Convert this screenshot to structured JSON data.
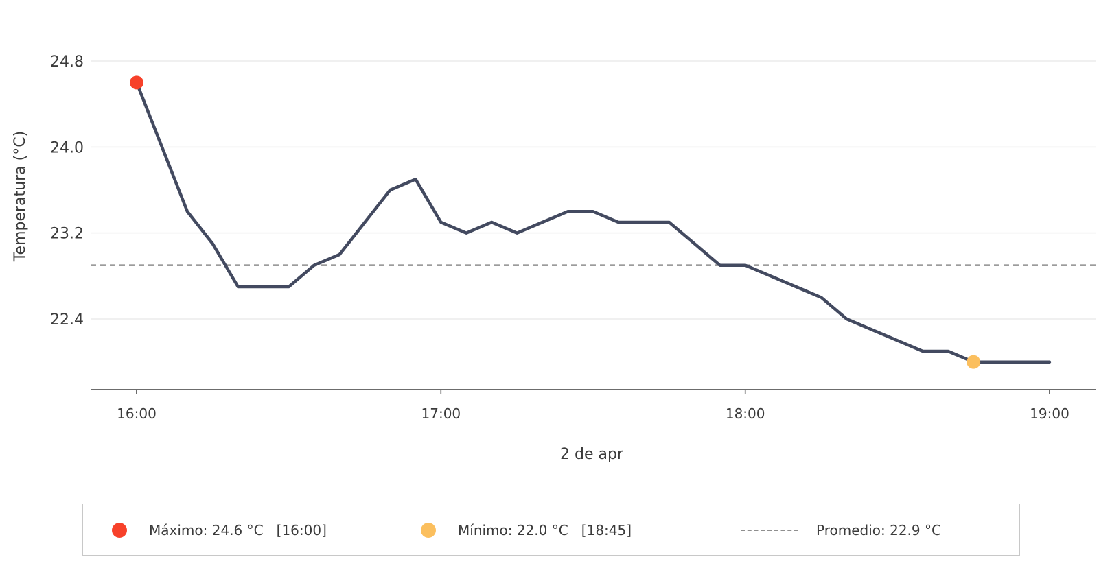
{
  "chart_data": {
    "type": "line",
    "ylabel": "Temperatura (°C)",
    "xlabel": "2 de apr",
    "ylim": [
      21.75,
      25.1
    ],
    "y_ticks": [
      "22.4",
      "23.2",
      "24.0",
      "24.8"
    ],
    "x_ticks": [
      "16:00",
      "17:00",
      "18:00",
      "19:00"
    ],
    "series": [
      {
        "x": [
          "16:00",
          "16:10",
          "16:15",
          "16:20",
          "16:25",
          "16:30",
          "16:35",
          "16:40",
          "16:45",
          "16:50",
          "16:55",
          "17:00",
          "17:05",
          "17:10",
          "17:15",
          "17:20",
          "17:25",
          "17:30",
          "17:35",
          "17:40",
          "17:45",
          "17:50",
          "17:55",
          "18:00",
          "18:05",
          "18:10",
          "18:15",
          "18:20",
          "18:25",
          "18:30",
          "18:35",
          "18:40",
          "18:45",
          "18:50",
          "18:55",
          "19:00"
        ],
        "values": [
          24.6,
          23.4,
          23.1,
          22.7,
          22.7,
          22.7,
          22.9,
          23.0,
          23.3,
          23.6,
          23.7,
          23.3,
          23.2,
          23.3,
          23.2,
          23.3,
          23.4,
          23.4,
          23.3,
          23.3,
          23.3,
          23.1,
          22.9,
          22.9,
          22.8,
          22.7,
          22.6,
          22.4,
          22.3,
          22.2,
          22.1,
          22.1,
          22.0,
          22.0,
          22.0,
          22.0
        ],
        "color": "#434a60"
      }
    ],
    "average": 22.9,
    "grid": "horizontal",
    "legend_position": "bottom"
  },
  "legend": {
    "max_label": "Máximo: 24.6 °C   [16:00]",
    "min_label": "Mínimo: 22.0 °C   [18:45]",
    "avg_label": "Promedio: 22.9 °C"
  },
  "colors": {
    "line": "#434a60",
    "max_marker": "#f7412a",
    "min_marker": "#fbbf5e",
    "average_line": "#8f8f8f",
    "grid": "#ececec",
    "axis": "#3b3b3b"
  }
}
